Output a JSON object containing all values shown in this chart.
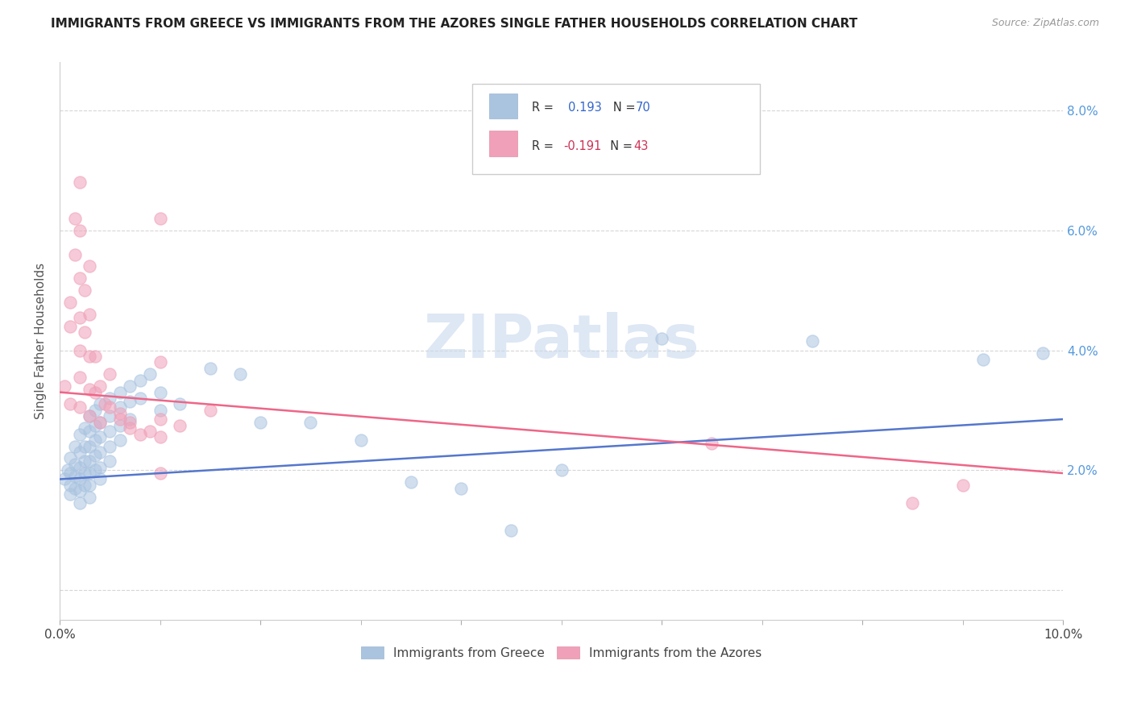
{
  "title": "IMMIGRANTS FROM GREECE VS IMMIGRANTS FROM THE AZORES SINGLE FATHER HOUSEHOLDS CORRELATION CHART",
  "source": "Source: ZipAtlas.com",
  "ylabel": "Single Father Households",
  "xlim": [
    0.0,
    0.1
  ],
  "ylim": [
    -0.005,
    0.088
  ],
  "xticks": [
    0.0,
    0.01,
    0.02,
    0.03,
    0.04,
    0.05,
    0.06,
    0.07,
    0.08,
    0.09,
    0.1
  ],
  "xtick_major": [
    0.0,
    0.02,
    0.04,
    0.06,
    0.08,
    0.1
  ],
  "xtick_labels_major": [
    "0.0%",
    "",
    "",
    "",
    "",
    "10.0%"
  ],
  "yticks": [
    0.0,
    0.02,
    0.04,
    0.06,
    0.08
  ],
  "ytick_labels_right": [
    "",
    "2.0%",
    "4.0%",
    "6.0%",
    "8.0%"
  ],
  "blue_color": "#aac4e0",
  "pink_color": "#f0a0b8",
  "blue_line_color": "#5577cc",
  "pink_line_color": "#ee6688",
  "watermark": "ZIPatlas",
  "R_blue": "0.193",
  "N_blue": "70",
  "R_pink": "-0.191",
  "N_pink": "43",
  "legend_R_color": "#3366cc",
  "legend_Rneg_color": "#cc3355",
  "legend_label_color": "#333333",
  "blue_scatter": [
    [
      0.0005,
      0.0185
    ],
    [
      0.0008,
      0.02
    ],
    [
      0.001,
      0.022
    ],
    [
      0.001,
      0.0195
    ],
    [
      0.001,
      0.0175
    ],
    [
      0.001,
      0.016
    ],
    [
      0.0015,
      0.024
    ],
    [
      0.0015,
      0.021
    ],
    [
      0.0015,
      0.019
    ],
    [
      0.0015,
      0.017
    ],
    [
      0.002,
      0.026
    ],
    [
      0.002,
      0.023
    ],
    [
      0.002,
      0.0205
    ],
    [
      0.002,
      0.0185
    ],
    [
      0.002,
      0.0165
    ],
    [
      0.002,
      0.0145
    ],
    [
      0.0025,
      0.027
    ],
    [
      0.0025,
      0.024
    ],
    [
      0.0025,
      0.0215
    ],
    [
      0.0025,
      0.0195
    ],
    [
      0.0025,
      0.0175
    ],
    [
      0.003,
      0.029
    ],
    [
      0.003,
      0.0265
    ],
    [
      0.003,
      0.024
    ],
    [
      0.003,
      0.0215
    ],
    [
      0.003,
      0.0195
    ],
    [
      0.003,
      0.0175
    ],
    [
      0.003,
      0.0155
    ],
    [
      0.0035,
      0.03
    ],
    [
      0.0035,
      0.0275
    ],
    [
      0.0035,
      0.025
    ],
    [
      0.0035,
      0.0225
    ],
    [
      0.0035,
      0.02
    ],
    [
      0.004,
      0.031
    ],
    [
      0.004,
      0.028
    ],
    [
      0.004,
      0.0255
    ],
    [
      0.004,
      0.023
    ],
    [
      0.004,
      0.0205
    ],
    [
      0.004,
      0.0185
    ],
    [
      0.005,
      0.032
    ],
    [
      0.005,
      0.029
    ],
    [
      0.005,
      0.0265
    ],
    [
      0.005,
      0.024
    ],
    [
      0.005,
      0.0215
    ],
    [
      0.006,
      0.033
    ],
    [
      0.006,
      0.0305
    ],
    [
      0.006,
      0.0275
    ],
    [
      0.006,
      0.025
    ],
    [
      0.007,
      0.034
    ],
    [
      0.007,
      0.0315
    ],
    [
      0.007,
      0.0285
    ],
    [
      0.008,
      0.035
    ],
    [
      0.008,
      0.032
    ],
    [
      0.009,
      0.036
    ],
    [
      0.01,
      0.033
    ],
    [
      0.01,
      0.03
    ],
    [
      0.012,
      0.031
    ],
    [
      0.015,
      0.037
    ],
    [
      0.018,
      0.036
    ],
    [
      0.02,
      0.028
    ],
    [
      0.025,
      0.028
    ],
    [
      0.03,
      0.025
    ],
    [
      0.035,
      0.018
    ],
    [
      0.04,
      0.017
    ],
    [
      0.045,
      0.01
    ],
    [
      0.05,
      0.02
    ],
    [
      0.06,
      0.042
    ],
    [
      0.075,
      0.0415
    ],
    [
      0.092,
      0.0385
    ],
    [
      0.098,
      0.0395
    ]
  ],
  "pink_scatter": [
    [
      0.0005,
      0.034
    ],
    [
      0.001,
      0.048
    ],
    [
      0.001,
      0.044
    ],
    [
      0.001,
      0.031
    ],
    [
      0.0015,
      0.062
    ],
    [
      0.0015,
      0.056
    ],
    [
      0.002,
      0.068
    ],
    [
      0.002,
      0.06
    ],
    [
      0.002,
      0.052
    ],
    [
      0.002,
      0.0455
    ],
    [
      0.002,
      0.04
    ],
    [
      0.002,
      0.0355
    ],
    [
      0.002,
      0.0305
    ],
    [
      0.0025,
      0.05
    ],
    [
      0.0025,
      0.043
    ],
    [
      0.003,
      0.054
    ],
    [
      0.003,
      0.046
    ],
    [
      0.003,
      0.039
    ],
    [
      0.003,
      0.0335
    ],
    [
      0.003,
      0.029
    ],
    [
      0.0035,
      0.039
    ],
    [
      0.0035,
      0.033
    ],
    [
      0.004,
      0.034
    ],
    [
      0.004,
      0.028
    ],
    [
      0.0045,
      0.031
    ],
    [
      0.005,
      0.036
    ],
    [
      0.005,
      0.0305
    ],
    [
      0.006,
      0.0285
    ],
    [
      0.006,
      0.0295
    ],
    [
      0.007,
      0.027
    ],
    [
      0.007,
      0.028
    ],
    [
      0.008,
      0.026
    ],
    [
      0.009,
      0.0265
    ],
    [
      0.01,
      0.062
    ],
    [
      0.01,
      0.038
    ],
    [
      0.01,
      0.0285
    ],
    [
      0.01,
      0.0255
    ],
    [
      0.01,
      0.0195
    ],
    [
      0.012,
      0.0275
    ],
    [
      0.015,
      0.03
    ],
    [
      0.065,
      0.0245
    ],
    [
      0.085,
      0.0145
    ],
    [
      0.09,
      0.0175
    ]
  ],
  "blue_trendline": [
    [
      0.0,
      0.0185
    ],
    [
      0.1,
      0.0285
    ]
  ],
  "pink_trendline": [
    [
      0.0,
      0.033
    ],
    [
      0.1,
      0.0195
    ]
  ]
}
